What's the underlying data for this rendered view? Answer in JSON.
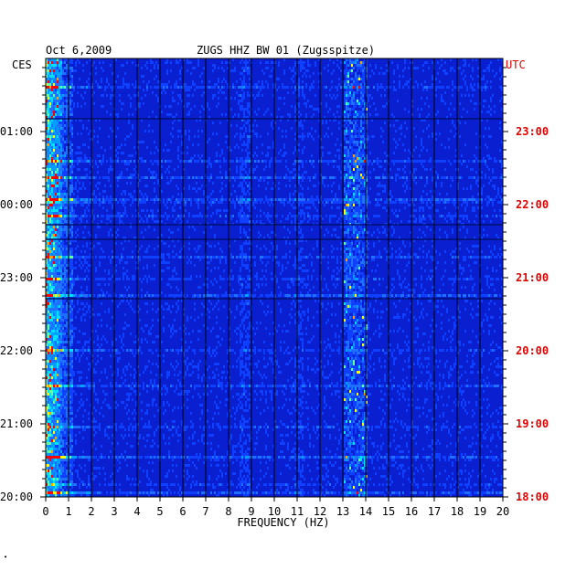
{
  "header": {
    "date": "Oct 6,2009",
    "station": "ZUGS HHZ BW 01 (Zugsspitze)"
  },
  "chart_data": {
    "type": "heatmap",
    "xlabel": "FREQUENCY (HZ)",
    "xlim": [
      0,
      20
    ],
    "x_ticks": [
      "0",
      "1",
      "2",
      "3",
      "4",
      "5",
      "6",
      "7",
      "8",
      "9",
      "10",
      "11",
      "12",
      "13",
      "14",
      "15",
      "16",
      "17",
      "18",
      "19",
      "20"
    ],
    "left_axis": {
      "label": "CES",
      "ticks": [
        "01:00",
        "00:00",
        "23:00",
        "22:00",
        "21:00",
        "20:00"
      ]
    },
    "right_axis": {
      "label": "UTC",
      "ticks": [
        "23:00",
        "22:00",
        "21:00",
        "20:00",
        "19:00",
        "18:00"
      ]
    },
    "colors": {
      "background_blue": "#0a1fd0",
      "deep_blue": "#0010a0",
      "cyan": "#00c8ff",
      "yellow": "#ffff00",
      "red": "#ff0000",
      "utc_label": "#e00000"
    }
  }
}
